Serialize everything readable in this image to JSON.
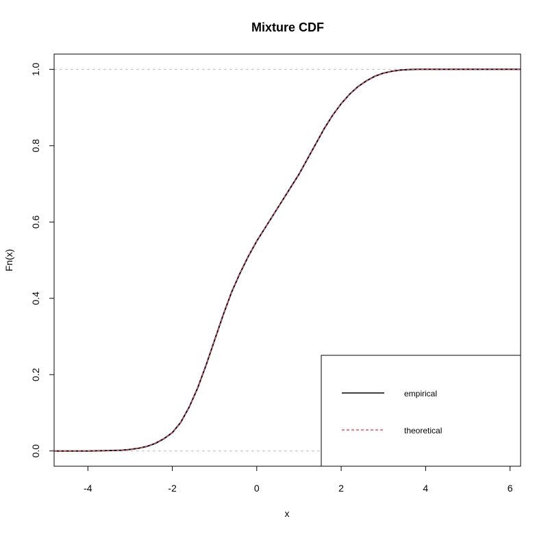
{
  "chart_data": {
    "type": "line",
    "title": "Mixture CDF",
    "xlabel": "x",
    "ylabel": "Fn(x)",
    "xlim": [
      -4.8,
      6.25
    ],
    "ylim": [
      -0.04,
      1.04
    ],
    "x_ticks": [
      -4,
      -2,
      0,
      2,
      4,
      6
    ],
    "y_ticks": [
      0.0,
      0.2,
      0.4,
      0.6,
      0.8,
      1.0
    ],
    "x_tick_labels": [
      "-4",
      "-2",
      "0",
      "2",
      "4",
      "6"
    ],
    "y_tick_labels": [
      "0.0",
      "0.2",
      "0.4",
      "0.6",
      "0.8",
      "1.0"
    ],
    "reference_lines": [
      0,
      1
    ],
    "legend_position": "bottom-right",
    "colors": {
      "empirical": "#000000",
      "theoretical": "#DF536B",
      "reference": "#BEBEBE"
    },
    "series": [
      {
        "name": "empirical",
        "style": "solid",
        "x": [
          -4.8,
          -4.0,
          -3.5,
          -3.2,
          -3.0,
          -2.8,
          -2.6,
          -2.4,
          -2.2,
          -2.0,
          -1.8,
          -1.6,
          -1.4,
          -1.2,
          -1.0,
          -0.8,
          -0.6,
          -0.4,
          -0.2,
          0.0,
          0.2,
          0.4,
          0.6,
          0.8,
          1.0,
          1.2,
          1.4,
          1.6,
          1.8,
          2.0,
          2.2,
          2.4,
          2.6,
          2.8,
          3.0,
          3.2,
          3.4,
          3.6,
          3.8,
          4.0,
          4.5,
          5.0,
          6.25
        ],
        "y": [
          0.0,
          0.0,
          0.001,
          0.002,
          0.004,
          0.007,
          0.012,
          0.02,
          0.032,
          0.048,
          0.075,
          0.115,
          0.165,
          0.225,
          0.29,
          0.355,
          0.415,
          0.465,
          0.51,
          0.55,
          0.585,
          0.62,
          0.655,
          0.69,
          0.725,
          0.765,
          0.805,
          0.845,
          0.88,
          0.91,
          0.935,
          0.955,
          0.97,
          0.982,
          0.99,
          0.995,
          0.998,
          0.9995,
          1.0,
          1.0,
          1.0,
          1.0,
          1.0
        ]
      },
      {
        "name": "theoretical",
        "style": "dashed",
        "x": [
          -4.8,
          -4.0,
          -3.5,
          -3.2,
          -3.0,
          -2.8,
          -2.6,
          -2.4,
          -2.2,
          -2.0,
          -1.8,
          -1.6,
          -1.4,
          -1.2,
          -1.0,
          -0.8,
          -0.6,
          -0.4,
          -0.2,
          0.0,
          0.2,
          0.4,
          0.6,
          0.8,
          1.0,
          1.2,
          1.4,
          1.6,
          1.8,
          2.0,
          2.2,
          2.4,
          2.6,
          2.8,
          3.0,
          3.2,
          3.4,
          3.6,
          3.8,
          4.0,
          4.5,
          5.0,
          6.25
        ],
        "y": [
          0.0,
          0.0,
          0.001,
          0.002,
          0.004,
          0.007,
          0.012,
          0.02,
          0.032,
          0.048,
          0.075,
          0.115,
          0.165,
          0.225,
          0.29,
          0.355,
          0.415,
          0.465,
          0.51,
          0.55,
          0.585,
          0.62,
          0.655,
          0.69,
          0.725,
          0.765,
          0.805,
          0.845,
          0.88,
          0.91,
          0.935,
          0.955,
          0.97,
          0.982,
          0.99,
          0.995,
          0.998,
          0.9995,
          1.0,
          1.0,
          1.0,
          1.0,
          1.0
        ]
      }
    ]
  }
}
